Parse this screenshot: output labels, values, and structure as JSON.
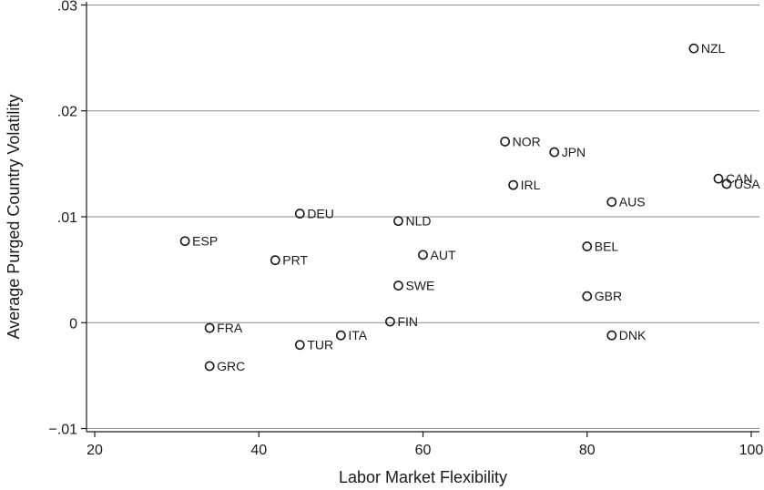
{
  "chart_data": {
    "type": "scatter",
    "title": "",
    "xlabel": "Labor Market Flexibility",
    "ylabel": "Average Purged Country Volatility",
    "xlim": [
      19,
      101
    ],
    "ylim": [
      -0.0103,
      0.0303
    ],
    "x_ticks": [
      20,
      40,
      60,
      80,
      100
    ],
    "x_tick_labels": [
      "20",
      "40",
      "60",
      "80",
      "100"
    ],
    "y_ticks": [
      -0.01,
      0,
      0.01,
      0.02,
      0.03
    ],
    "y_tick_labels": [
      "−.01",
      "0",
      ".01",
      ".02",
      ".03"
    ],
    "grid": true,
    "marker": "hollow-circle",
    "points": [
      {
        "label": "NZL",
        "x": 93,
        "y": 0.0259
      },
      {
        "label": "NOR",
        "x": 70,
        "y": 0.0171
      },
      {
        "label": "JPN",
        "x": 76,
        "y": 0.0161
      },
      {
        "label": "CAN",
        "x": 96,
        "y": 0.0136
      },
      {
        "label": "USA",
        "x": 97,
        "y": 0.0131
      },
      {
        "label": "IRL",
        "x": 71,
        "y": 0.013
      },
      {
        "label": "AUS",
        "x": 83,
        "y": 0.0114
      },
      {
        "label": "DEU",
        "x": 45,
        "y": 0.0103
      },
      {
        "label": "NLD",
        "x": 57,
        "y": 0.0096
      },
      {
        "label": "ESP",
        "x": 31,
        "y": 0.0077
      },
      {
        "label": "BEL",
        "x": 80,
        "y": 0.0072
      },
      {
        "label": "AUT",
        "x": 60,
        "y": 0.0064
      },
      {
        "label": "PRT",
        "x": 42,
        "y": 0.0059
      },
      {
        "label": "SWE",
        "x": 57,
        "y": 0.0035
      },
      {
        "label": "GBR",
        "x": 80,
        "y": 0.0025
      },
      {
        "label": "FIN",
        "x": 56,
        "y": 0.0001
      },
      {
        "label": "FRA",
        "x": 34,
        "y": -0.0005
      },
      {
        "label": "ITA",
        "x": 50,
        "y": -0.0012
      },
      {
        "label": "DNK",
        "x": 83,
        "y": -0.0012
      },
      {
        "label": "TUR",
        "x": 45,
        "y": -0.0021
      },
      {
        "label": "GRC",
        "x": 34,
        "y": -0.0041
      }
    ],
    "colors": {
      "marker": "#1a1a1a",
      "grid": "#8c8c8c",
      "axis": "#1a1a1a"
    }
  }
}
